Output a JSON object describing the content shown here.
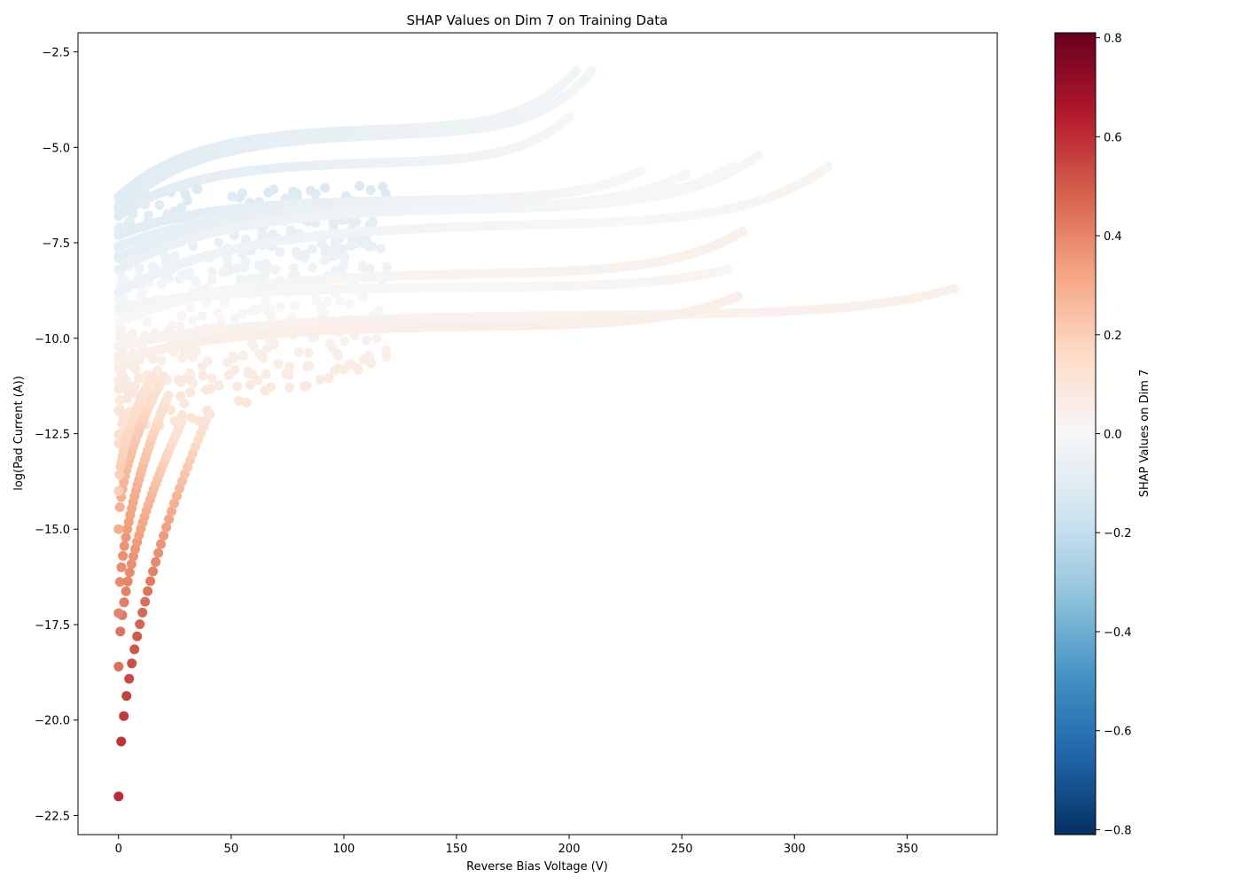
{
  "chart_data": {
    "type": "scatter",
    "title": "SHAP Values on Dim 7 on Training Data",
    "xlabel": "Reverse Bias Voltage (V)",
    "ylabel": "log(Pad Current (A))",
    "xlim": [
      -18,
      390
    ],
    "ylim": [
      -23.0,
      -2.0
    ],
    "xticks": [
      0,
      50,
      100,
      150,
      200,
      250,
      300,
      350
    ],
    "xtick_labels": [
      "0",
      "50",
      "100",
      "150",
      "200",
      "250",
      "300",
      "350"
    ],
    "yticks": [
      -2.5,
      -5.0,
      -7.5,
      -10.0,
      -12.5,
      -15.0,
      -17.5,
      -20.0,
      -22.5
    ],
    "ytick_labels": [
      "−2.5",
      "−5.0",
      "−7.5",
      "−10.0",
      "−12.5",
      "−15.0",
      "−17.5",
      "−20.0",
      "−22.5"
    ],
    "grid": false,
    "colormap": "RdBu_r",
    "colorbar": {
      "label": "SHAP Values on Dim 7",
      "range": [
        -0.81,
        0.81
      ],
      "ticks": [
        0.8,
        0.6,
        0.4,
        0.2,
        0.0,
        -0.2,
        -0.4,
        -0.6,
        -0.8
      ],
      "tick_labels": [
        "0.8",
        "0.6",
        "0.4",
        "0.2",
        "0.0",
        "−0.2",
        "−0.4",
        "−0.6",
        "−0.8"
      ]
    },
    "series": [
      {
        "x_start": 0,
        "x_end": 203,
        "y_start": -6.3,
        "y_end": -3.0,
        "shap_start": -0.1,
        "shap_end": -0.02
      },
      {
        "x_start": 0,
        "x_end": 210,
        "y_start": -6.6,
        "y_end": -3.0,
        "shap_start": -0.1,
        "shap_end": -0.02
      },
      {
        "x_start": 0,
        "x_end": 200,
        "y_start": -6.8,
        "y_end": -4.2,
        "shap_start": -0.1,
        "shap_end": -0.01
      },
      {
        "x_start": 0,
        "x_end": 232,
        "y_start": -7.3,
        "y_end": -5.6,
        "shap_start": -0.1,
        "shap_end": 0.0
      },
      {
        "x_start": 0,
        "x_end": 252,
        "y_start": -7.6,
        "y_end": -5.7,
        "shap_start": -0.08,
        "shap_end": 0.0
      },
      {
        "x_start": 0,
        "x_end": 272,
        "y_start": -7.9,
        "y_end": -5.5,
        "shap_start": -0.08,
        "shap_end": 0.0
      },
      {
        "x_start": 0,
        "x_end": 284,
        "y_start": -8.2,
        "y_end": -5.2,
        "shap_start": -0.06,
        "shap_end": 0.01
      },
      {
        "x_start": 0,
        "x_end": 315,
        "y_start": -8.8,
        "y_end": -5.5,
        "shap_start": -0.05,
        "shap_end": 0.02
      },
      {
        "x_start": 0,
        "x_end": 270,
        "y_start": -9.2,
        "y_end": -8.2,
        "shap_start": -0.02,
        "shap_end": 0.02
      },
      {
        "x_start": 0,
        "x_end": 277,
        "y_start": -9.6,
        "y_end": -7.2,
        "shap_start": 0.0,
        "shap_end": 0.04
      },
      {
        "x_start": 0,
        "x_end": 371,
        "y_start": -10.2,
        "y_end": -8.7,
        "shap_start": 0.03,
        "shap_end": 0.04
      },
      {
        "x_start": 0,
        "x_end": 275,
        "y_start": -10.6,
        "y_end": -8.9,
        "shap_start": 0.05,
        "shap_end": 0.05
      },
      {
        "x_start": 0,
        "x_end": 40,
        "y_start": -22.0,
        "y_end": -12.0,
        "shap_start": 0.6,
        "shap_end": 0.1
      },
      {
        "x_start": 0,
        "x_end": 28,
        "y_start": -18.6,
        "y_end": -12.2,
        "shap_start": 0.45,
        "shap_end": 0.1
      },
      {
        "x_start": 0,
        "x_end": 22,
        "y_start": -17.2,
        "y_end": -11.5,
        "shap_start": 0.4,
        "shap_end": 0.1
      },
      {
        "x_start": 0,
        "x_end": 20,
        "y_start": -15.0,
        "y_end": -11.0,
        "shap_start": 0.3,
        "shap_end": 0.1
      },
      {
        "x_start": 0,
        "x_end": 15,
        "y_start": -14.0,
        "y_end": -11.0,
        "shap_start": 0.2,
        "shap_end": 0.1
      }
    ],
    "spread_cloud": {
      "x_range": [
        0,
        120
      ],
      "y_range": [
        -12.8,
        -6.0
      ],
      "shap_range": [
        -0.12,
        0.14
      ]
    }
  }
}
